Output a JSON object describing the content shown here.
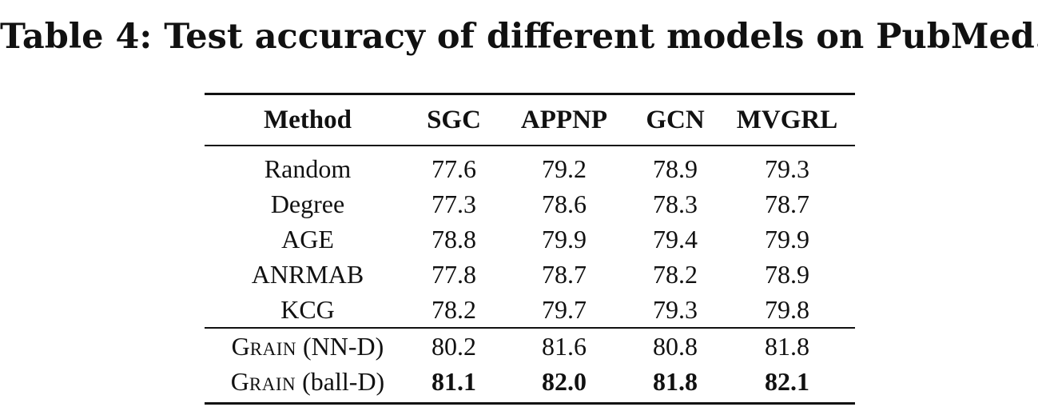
{
  "caption": "Table 4: Test accuracy of different models on PubMed.",
  "table": {
    "headers": [
      "Method",
      "SGC",
      "APPNP",
      "GCN",
      "MVGRL"
    ],
    "rows": [
      {
        "method": "Random",
        "values": [
          "77.6",
          "79.2",
          "78.9",
          "79.3"
        ]
      },
      {
        "method": "Degree",
        "values": [
          "77.3",
          "78.6",
          "78.3",
          "78.7"
        ]
      },
      {
        "method": "AGE",
        "values": [
          "78.8",
          "79.9",
          "79.4",
          "79.9"
        ]
      },
      {
        "method": "ANRMAB",
        "values": [
          "77.8",
          "78.7",
          "78.2",
          "78.9"
        ]
      },
      {
        "method": "KCG",
        "values": [
          "78.2",
          "79.7",
          "79.3",
          "79.8"
        ]
      }
    ],
    "grain_rows": [
      {
        "method_first": "G",
        "method_rest": "RAIN",
        "method_suffix": " (NN-D)",
        "values": [
          "80.2",
          "81.6",
          "80.8",
          "81.8"
        ],
        "bold": false
      },
      {
        "method_first": "G",
        "method_rest": "RAIN",
        "method_suffix": " (ball-D)",
        "values": [
          "81.1",
          "82.0",
          "81.8",
          "82.1"
        ],
        "bold": true
      }
    ]
  }
}
